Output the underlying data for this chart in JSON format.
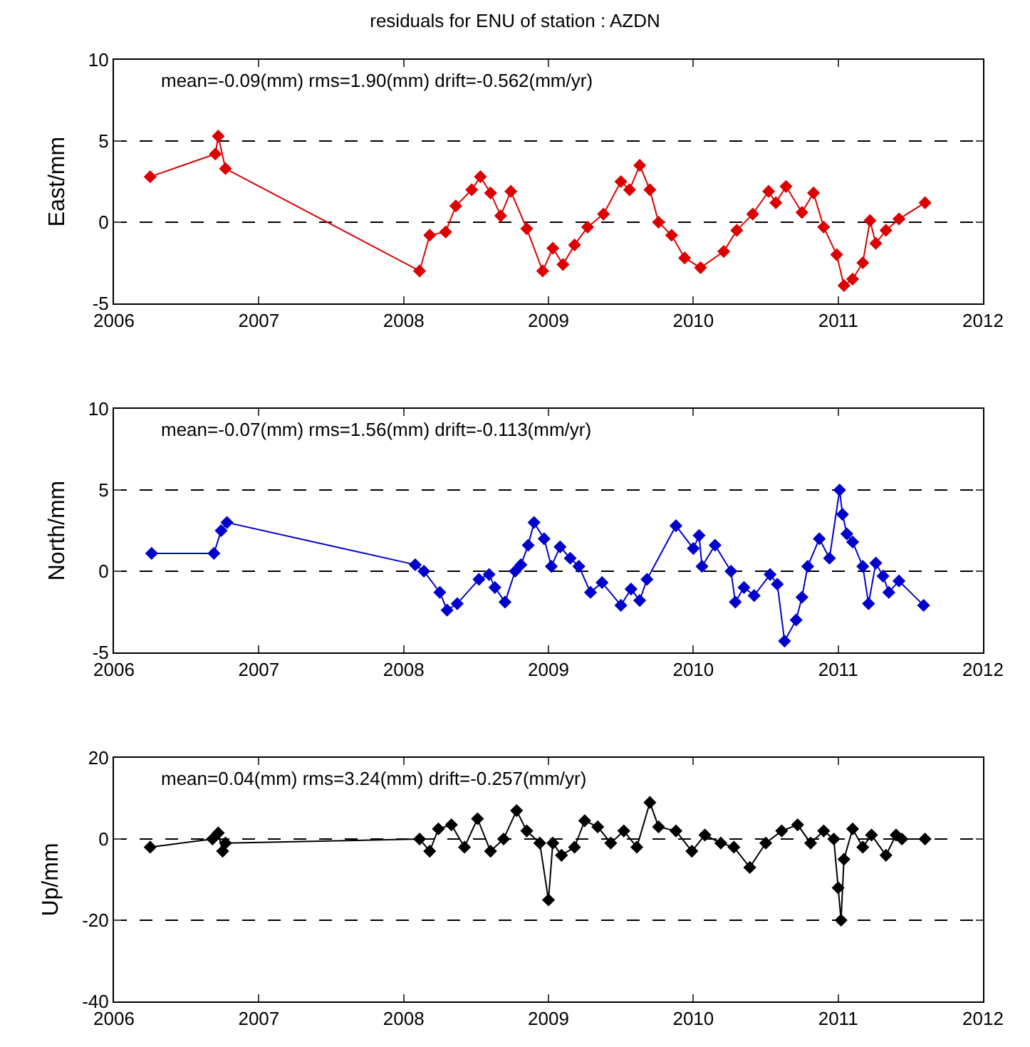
{
  "chart_data": [
    {
      "type": "line",
      "title": "residuals for ENU of station : AZDN",
      "ylabel": "East/mm",
      "annotations": [
        "mean=-0.09(mm) rms=1.90(mm) drift=-0.562(mm/yr)"
      ],
      "marker": "diamond",
      "grid": "y",
      "line_style": "solid",
      "color": "#dd0000",
      "x": [
        2006.25,
        2006.7,
        2006.72,
        2006.77,
        2008.11,
        2008.18,
        2008.29,
        2008.36,
        2008.47,
        2008.53,
        2008.6,
        2008.67,
        2008.74,
        2008.85,
        2008.96,
        2009.03,
        2009.1,
        2009.18,
        2009.27,
        2009.38,
        2009.5,
        2009.56,
        2009.63,
        2009.7,
        2009.76,
        2009.85,
        2009.94,
        2010.05,
        2010.21,
        2010.3,
        2010.41,
        2010.52,
        2010.57,
        2010.64,
        2010.75,
        2010.83,
        2010.9,
        2010.99,
        2011.04,
        2011.1,
        2011.17,
        2011.22,
        2011.26,
        2011.33,
        2011.42,
        2011.6
      ],
      "values": [
        2.8,
        4.2,
        5.3,
        3.3,
        -3.0,
        -0.8,
        -0.6,
        1.0,
        2.0,
        2.8,
        1.8,
        0.4,
        1.9,
        -0.4,
        -3.0,
        -1.6,
        -2.6,
        -1.4,
        -0.3,
        0.5,
        2.5,
        2.0,
        3.5,
        2.0,
        0.0,
        -0.8,
        -2.2,
        -2.8,
        -1.8,
        -0.5,
        0.5,
        1.9,
        1.2,
        2.2,
        0.6,
        1.8,
        -0.3,
        -2.0,
        -3.9,
        -3.5,
        -2.5,
        0.1,
        -1.3,
        -0.5,
        0.2,
        1.2
      ],
      "xlim": [
        2006,
        2012
      ],
      "xticks": [
        2006,
        2007,
        2008,
        2009,
        2010,
        2011,
        2012
      ],
      "ylim": [
        -5,
        10
      ],
      "yticks": [
        -5,
        0,
        5,
        10
      ]
    },
    {
      "type": "line",
      "ylabel": "North/mm",
      "annotations": [
        "mean=-0.07(mm) rms=1.56(mm) drift=-0.113(mm/yr)"
      ],
      "marker": "diamond",
      "grid": "y",
      "line_style": "solid",
      "color": "#0000cc",
      "x": [
        2006.26,
        2006.69,
        2006.74,
        2006.78,
        2008.08,
        2008.14,
        2008.25,
        2008.3,
        2008.37,
        2008.52,
        2008.59,
        2008.63,
        2008.7,
        2008.77,
        2008.81,
        2008.86,
        2008.9,
        2008.97,
        2009.02,
        2009.08,
        2009.15,
        2009.21,
        2009.29,
        2009.37,
        2009.5,
        2009.57,
        2009.63,
        2009.68,
        2009.88,
        2010.0,
        2010.04,
        2010.06,
        2010.15,
        2010.26,
        2010.29,
        2010.35,
        2010.42,
        2010.53,
        2010.58,
        2010.63,
        2010.71,
        2010.75,
        2010.79,
        2010.87,
        2010.94,
        2011.01,
        2011.03,
        2011.06,
        2011.1,
        2011.17,
        2011.21,
        2011.26,
        2011.31,
        2011.35,
        2011.42,
        2011.59
      ],
      "values": [
        1.1,
        1.1,
        2.5,
        3.0,
        0.4,
        0.0,
        -1.3,
        -2.4,
        -2.0,
        -0.5,
        -0.2,
        -1.0,
        -1.9,
        0.0,
        0.4,
        1.6,
        3.0,
        2.0,
        0.3,
        1.5,
        0.8,
        0.3,
        -1.3,
        -0.7,
        -2.1,
        -1.1,
        -1.8,
        -0.5,
        2.8,
        1.4,
        2.2,
        0.3,
        1.6,
        0.0,
        -1.9,
        -1.0,
        -1.5,
        -0.2,
        -0.8,
        -4.3,
        -3.0,
        -1.6,
        0.3,
        2.0,
        0.8,
        5.0,
        3.5,
        2.3,
        1.8,
        0.3,
        -2.0,
        0.5,
        -0.3,
        -1.3,
        -0.6,
        -2.1
      ],
      "xlim": [
        2006,
        2012
      ],
      "xticks": [
        2006,
        2007,
        2008,
        2009,
        2010,
        2011,
        2012
      ],
      "ylim": [
        -5,
        10
      ],
      "yticks": [
        -5,
        0,
        5,
        10
      ]
    },
    {
      "type": "line",
      "ylabel": "Up/mm",
      "annotations": [
        "mean=0.04(mm) rms=3.24(mm) drift=-0.257(mm/yr)"
      ],
      "marker": "diamond",
      "grid": "y",
      "line_style": "solid",
      "color": "#000000",
      "x": [
        2006.25,
        2006.68,
        2006.72,
        2006.75,
        2006.77,
        2008.11,
        2008.18,
        2008.24,
        2008.33,
        2008.42,
        2008.51,
        2008.6,
        2008.69,
        2008.78,
        2008.85,
        2008.94,
        2009.0,
        2009.03,
        2009.09,
        2009.18,
        2009.25,
        2009.34,
        2009.43,
        2009.52,
        2009.61,
        2009.7,
        2009.76,
        2009.88,
        2009.99,
        2010.08,
        2010.19,
        2010.28,
        2010.39,
        2010.5,
        2010.61,
        2010.72,
        2010.81,
        2010.9,
        2010.97,
        2011.0,
        2011.02,
        2011.04,
        2011.1,
        2011.17,
        2011.23,
        2011.33,
        2011.4,
        2011.44,
        2011.6
      ],
      "values": [
        -2,
        0,
        1.5,
        -3,
        -1,
        0,
        -3,
        2.5,
        3.5,
        -2,
        5,
        -3,
        0,
        7,
        2,
        -1,
        -15,
        -1,
        -4,
        -2,
        4.5,
        3,
        -1,
        2,
        -2,
        9,
        3,
        2,
        -3,
        1,
        -1,
        -2,
        -7,
        -1,
        2,
        3.5,
        -1,
        2,
        0,
        -12,
        -20,
        -5,
        2.5,
        -2,
        1,
        -4,
        1,
        0,
        0
      ],
      "xlim": [
        2006,
        2012
      ],
      "xticks": [
        2006,
        2007,
        2008,
        2009,
        2010,
        2011,
        2012
      ],
      "ylim": [
        -40,
        20
      ],
      "yticks": [
        -40,
        -20,
        0,
        20
      ]
    }
  ]
}
